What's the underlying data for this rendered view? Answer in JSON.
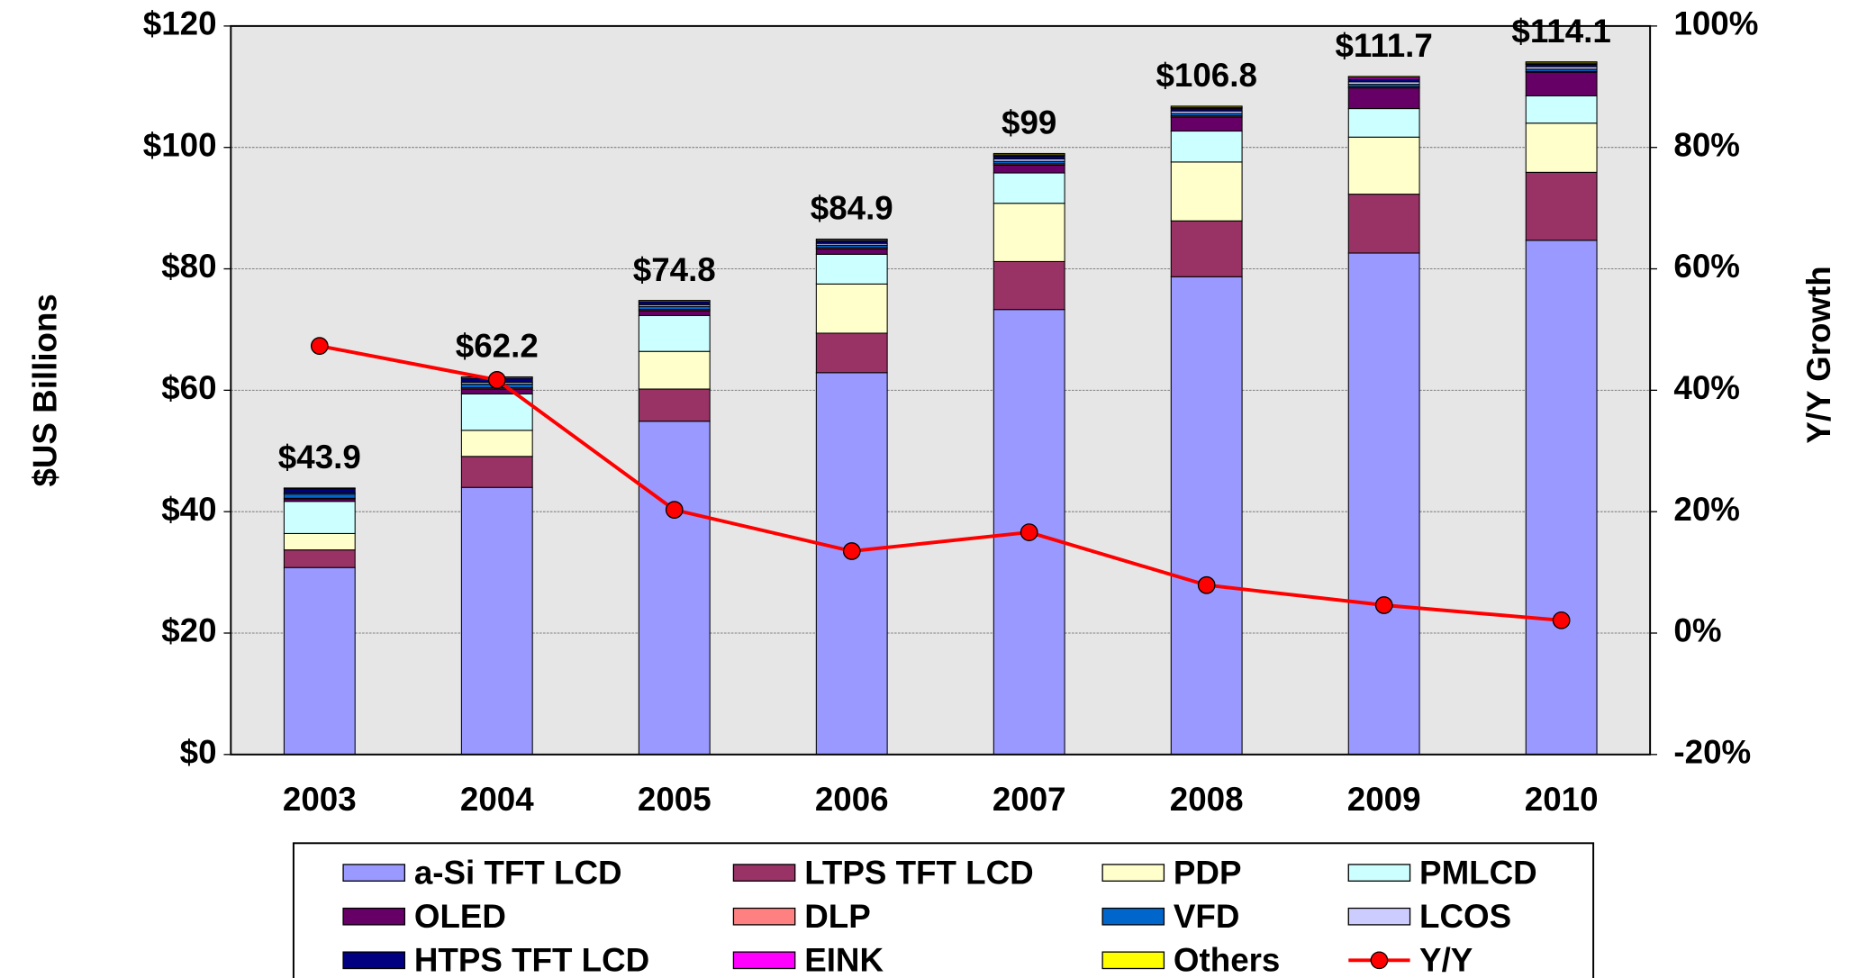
{
  "chart_data": {
    "type": "stacked_bar_line",
    "categories": [
      "2003",
      "2004",
      "2005",
      "2006",
      "2007",
      "2008",
      "2009",
      "2010"
    ],
    "ylabel": "$US Billions",
    "y2label": "Y/Y Growth",
    "ylim": [
      0,
      120
    ],
    "yticks": [
      {
        "value": 0,
        "label": "$0"
      },
      {
        "value": 20,
        "label": "$20"
      },
      {
        "value": 40,
        "label": "$40"
      },
      {
        "value": 60,
        "label": "$60"
      },
      {
        "value": 80,
        "label": "$80"
      },
      {
        "value": 100,
        "label": "$100"
      },
      {
        "value": 120,
        "label": "$120"
      }
    ],
    "y2lim": [
      -20,
      100
    ],
    "y2ticks": [
      {
        "value": -20,
        "label": "-20%"
      },
      {
        "value": 0,
        "label": "0%"
      },
      {
        "value": 20,
        "label": "20%"
      },
      {
        "value": 40,
        "label": "40%"
      },
      {
        "value": 60,
        "label": "60%"
      },
      {
        "value": 80,
        "label": "80%"
      },
      {
        "value": 100,
        "label": "100%"
      }
    ],
    "grid": true,
    "series": [
      {
        "name": "a-Si TFT LCD",
        "color": "#9999FF",
        "values": [
          30.8,
          44.0,
          54.9,
          62.9,
          73.3,
          78.7,
          82.6,
          84.7
        ]
      },
      {
        "name": "LTPS TFT LCD",
        "color": "#993366",
        "values": [
          2.9,
          5.1,
          5.3,
          6.5,
          7.9,
          9.2,
          9.7,
          11.2
        ]
      },
      {
        "name": "PDP",
        "color": "#FFFFCC",
        "values": [
          2.7,
          4.3,
          6.2,
          8.1,
          9.6,
          9.7,
          9.4,
          8.1
        ]
      },
      {
        "name": "PMLCD",
        "color": "#CCFFFF",
        "values": [
          5.3,
          6.0,
          5.9,
          4.9,
          5.0,
          5.1,
          4.7,
          4.5
        ]
      },
      {
        "name": "OLED",
        "color": "#660066",
        "values": [
          0.4,
          0.8,
          0.8,
          0.9,
          1.3,
          2.3,
          3.4,
          3.9
        ]
      },
      {
        "name": "DLP",
        "color": "#FF8080",
        "values": [
          0.1,
          0.2,
          0.2,
          0.2,
          0.2,
          0.2,
          0.2,
          0.1
        ]
      },
      {
        "name": "VFD",
        "color": "#0066CC",
        "values": [
          0.7,
          0.6,
          0.5,
          0.4,
          0.4,
          0.4,
          0.4,
          0.4
        ]
      },
      {
        "name": "LCOS",
        "color": "#CCCCFF",
        "values": [
          0.2,
          0.3,
          0.3,
          0.3,
          0.4,
          0.4,
          0.4,
          0.4
        ]
      },
      {
        "name": "HTPS TFT LCD",
        "color": "#000080",
        "values": [
          0.7,
          0.7,
          0.5,
          0.5,
          0.5,
          0.4,
          0.4,
          0.4
        ]
      },
      {
        "name": "EINK",
        "color": "#FF00FF",
        "values": [
          0.0,
          0.0,
          0.0,
          0.0,
          0.2,
          0.2,
          0.3,
          0.2
        ]
      },
      {
        "name": "Others",
        "color": "#FFFF00",
        "values": [
          0.1,
          0.2,
          0.2,
          0.2,
          0.2,
          0.2,
          0.2,
          0.2
        ]
      },
      {
        "name": "Y/Y",
        "color": "#FF0000",
        "axis": "y2",
        "type": "line",
        "values": [
          47.3,
          41.7,
          20.3,
          13.5,
          16.6,
          7.9,
          4.6,
          2.1
        ]
      }
    ],
    "totals": {
      "values": [
        43.9,
        62.2,
        74.8,
        84.9,
        99,
        106.8,
        111.7,
        114.1
      ],
      "value_labels": [
        "$43.9",
        "$62.2",
        "$74.8",
        "$84.9",
        "$99",
        "$106.8",
        "$111.7",
        "$114.1"
      ]
    }
  }
}
